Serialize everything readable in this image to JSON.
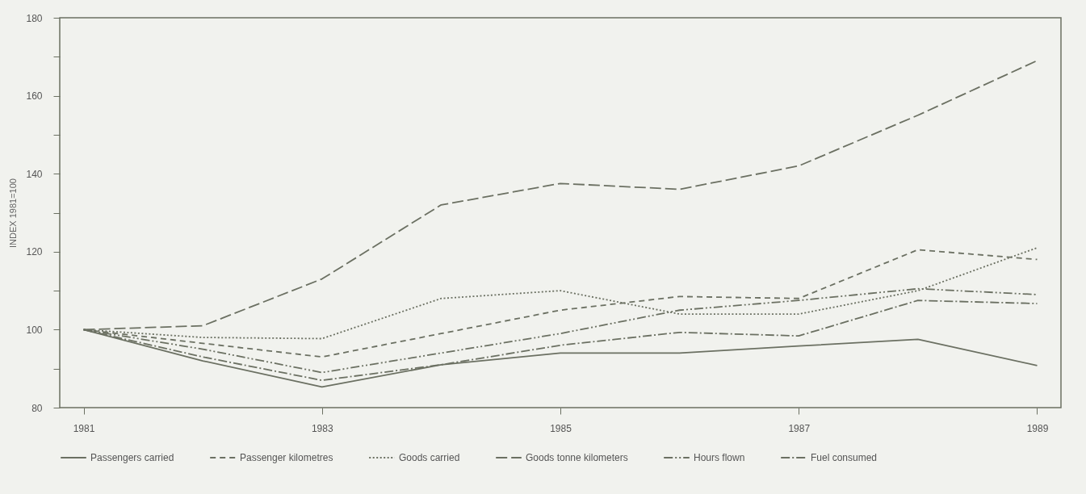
{
  "chart_data": {
    "type": "line",
    "ylabel": "INDEX 1981=100",
    "x": [
      1981,
      1982,
      1983,
      1984,
      1985,
      1986,
      1987,
      1988,
      1989
    ],
    "xlim": [
      1980.8,
      1989.2
    ],
    "xticks": [
      1981,
      1983,
      1985,
      1987,
      1989
    ],
    "ylim": [
      80,
      180
    ],
    "yticks": [
      80,
      {
        "value": 90,
        "label": null
      },
      100,
      {
        "value": 110,
        "label": null
      },
      120,
      {
        "value": 130,
        "label": null
      },
      140,
      {
        "value": 150,
        "label": null
      },
      160,
      {
        "value": 170,
        "label": null
      },
      180
    ],
    "grid": false,
    "legend": "bottom",
    "marker": "none",
    "series": [
      {
        "name": "Passengers carried",
        "color": "#6b7062",
        "line_style": "solid",
        "values": [
          100,
          92,
          85.3,
          91,
          94,
          94,
          95.8,
          97.5,
          90.8
        ]
      },
      {
        "name": "Passenger kilometres",
        "color": "#6b7062",
        "line_style": "dashed",
        "values": [
          100,
          96.5,
          93,
          99,
          105,
          108.5,
          108,
          120.5,
          118
        ]
      },
      {
        "name": "Goods carried",
        "color": "#6b7062",
        "line_style": "dotted",
        "values": [
          100,
          98,
          97.7,
          108,
          110,
          104,
          104,
          110,
          121
        ]
      },
      {
        "name": "Goods tonne kilometers",
        "color": "#6b7062",
        "line_style": "long-dashed",
        "values": [
          100,
          101,
          113,
          132,
          137.5,
          136,
          142,
          155,
          169
        ]
      },
      {
        "name": "Hours flown",
        "color": "#6b7062",
        "line_style": "dash-dot-dot",
        "values": [
          100,
          95,
          89,
          94,
          99,
          105,
          107.5,
          110.5,
          109
        ]
      },
      {
        "name": "Fuel consumed",
        "color": "#6b7062",
        "line_style": "dash-dot",
        "values": [
          100,
          93,
          87,
          91,
          96,
          99.3,
          98.4,
          107.5,
          106.7
        ]
      }
    ]
  }
}
